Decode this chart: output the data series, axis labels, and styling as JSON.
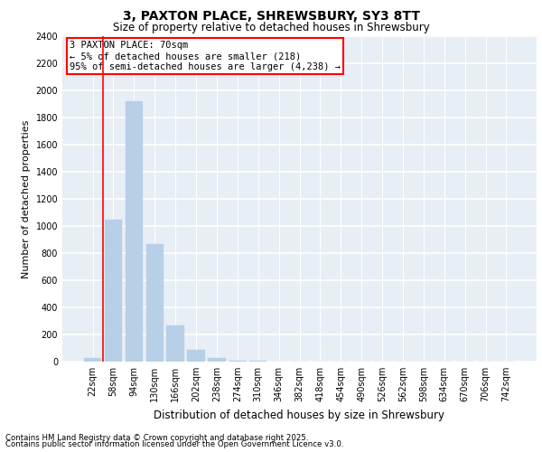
{
  "title": "3, PAXTON PLACE, SHREWSBURY, SY3 8TT",
  "subtitle": "Size of property relative to detached houses in Shrewsbury",
  "xlabel": "Distribution of detached houses by size in Shrewsbury",
  "ylabel": "Number of detached properties",
  "footnote1": "Contains HM Land Registry data © Crown copyright and database right 2025.",
  "footnote2": "Contains public sector information licensed under the Open Government Licence v3.0.",
  "annotation_title": "3 PAXTON PLACE: 70sqm",
  "annotation_line2": "← 5% of detached houses are smaller (218)",
  "annotation_line3": "95% of semi-detached houses are larger (4,238) →",
  "bar_color": "#b8cfe8",
  "background_color": "#e8eef5",
  "categories": [
    "22sqm",
    "58sqm",
    "94sqm",
    "130sqm",
    "166sqm",
    "202sqm",
    "238sqm",
    "274sqm",
    "310sqm",
    "346sqm",
    "382sqm",
    "418sqm",
    "454sqm",
    "490sqm",
    "526sqm",
    "562sqm",
    "598sqm",
    "634sqm",
    "670sqm",
    "706sqm",
    "742sqm"
  ],
  "values": [
    25,
    1050,
    1920,
    870,
    270,
    90,
    30,
    10,
    5,
    3,
    2,
    1,
    1,
    1,
    0,
    0,
    0,
    0,
    0,
    0,
    0
  ],
  "ylim": [
    0,
    2400
  ],
  "yticks": [
    0,
    200,
    400,
    600,
    800,
    1000,
    1200,
    1400,
    1600,
    1800,
    2000,
    2200,
    2400
  ],
  "vline_bin": 1,
  "title_fontsize": 10,
  "subtitle_fontsize": 8.5,
  "ylabel_fontsize": 8,
  "xlabel_fontsize": 8.5,
  "tick_fontsize": 7,
  "annotation_fontsize": 7.5
}
